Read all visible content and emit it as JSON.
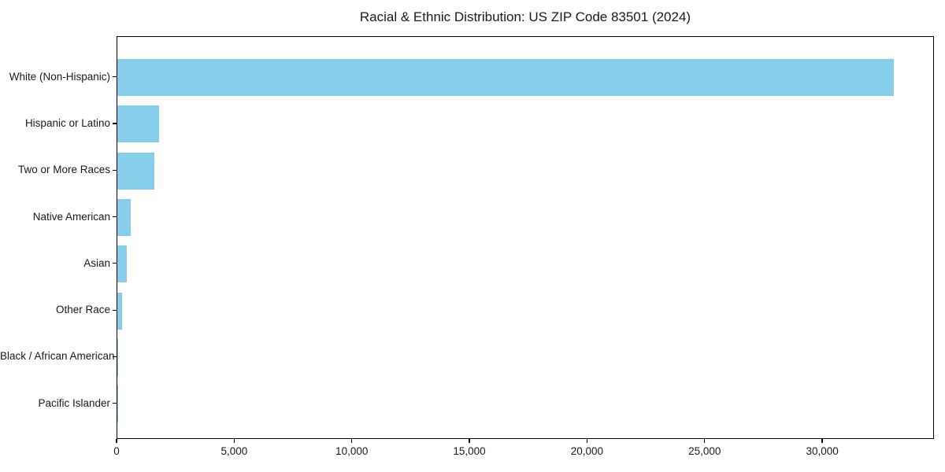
{
  "chart_data": {
    "type": "bar",
    "orientation": "horizontal",
    "title": "Racial & Ethnic Distribution: US ZIP Code 83501 (2024)",
    "categories": [
      "White (Non-Hispanic)",
      "Hispanic or Latino",
      "Two or More Races",
      "Native American",
      "Asian",
      "Other Race",
      "Black / African American",
      "Pacific Islander"
    ],
    "values": [
      33080,
      1770,
      1560,
      560,
      400,
      200,
      40,
      15
    ],
    "xlabel": "",
    "ylabel": "",
    "xlim": [
      0,
      34750
    ],
    "x_ticks": [
      {
        "value": 0,
        "label": "0"
      },
      {
        "value": 5000,
        "label": "5,000"
      },
      {
        "value": 10000,
        "label": "10,000"
      },
      {
        "value": 15000,
        "label": "15,000"
      },
      {
        "value": 20000,
        "label": "20,000"
      },
      {
        "value": 25000,
        "label": "25,000"
      },
      {
        "value": 30000,
        "label": "30,000"
      }
    ],
    "bar_color": "#87CEEB",
    "background_color": "#FFFFFF",
    "text_color": "#1A1A1A",
    "grid": false,
    "legend": null
  }
}
